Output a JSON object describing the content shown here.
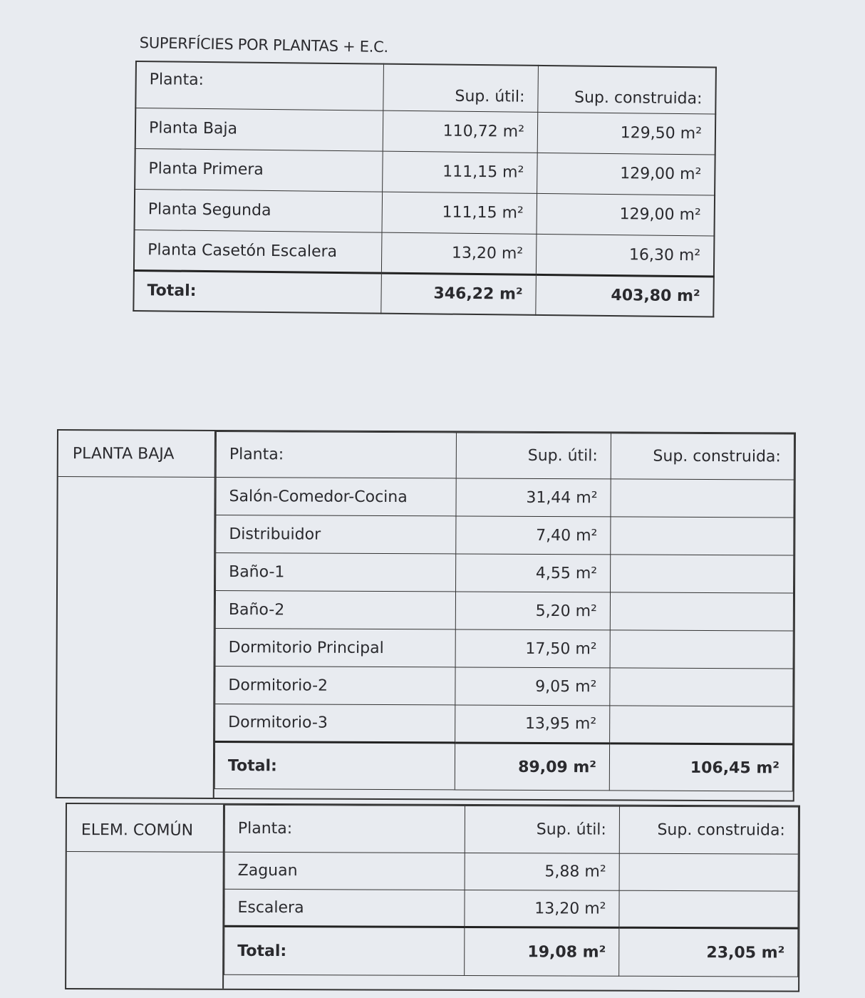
{
  "summary": {
    "title": "SUPERFÍCIES POR PLANTAS + E.C.",
    "headers": [
      "Planta:",
      "Sup. útil:",
      "Sup. construida:"
    ],
    "rows": [
      {
        "name": "Planta Baja",
        "util": "110,72 m²",
        "construida": "129,50 m²"
      },
      {
        "name": "Planta Primera",
        "util": "111,15 m²",
        "construida": "129,00 m²"
      },
      {
        "name": "Planta Segunda",
        "util": "111,15 m²",
        "construida": "129,00 m²"
      },
      {
        "name": "Planta Casetón Escalera",
        "util": "13,20 m²",
        "construida": "16,30 m²"
      }
    ],
    "total": {
      "name": "Total:",
      "util": "346,22 m²",
      "construida": "403,80 m²"
    }
  },
  "planta_baja": {
    "section": "PLANTA BAJA",
    "headers": [
      "Planta:",
      "Sup. útil:",
      "Sup. construida:"
    ],
    "rows": [
      {
        "name": "Salón-Comedor-Cocina",
        "util": "31,44 m²",
        "construida": ""
      },
      {
        "name": "Distribuidor",
        "util": "7,40 m²",
        "construida": ""
      },
      {
        "name": "Baño-1",
        "util": "4,55 m²",
        "construida": ""
      },
      {
        "name": "Baño-2",
        "util": "5,20 m²",
        "construida": ""
      },
      {
        "name": "Dormitorio Principal",
        "util": "17,50 m²",
        "construida": ""
      },
      {
        "name": "Dormitorio-2",
        "util": "9,05 m²",
        "construida": ""
      },
      {
        "name": "Dormitorio-3",
        "util": "13,95 m²",
        "construida": ""
      }
    ],
    "total": {
      "name": "Total:",
      "util": "89,09 m²",
      "construida": "106,45 m²"
    }
  },
  "elem_comun": {
    "section": "ELEM. COMÚN",
    "headers": [
      "Planta:",
      "Sup. útil:",
      "Sup. construida:"
    ],
    "rows": [
      {
        "name": "Zaguan",
        "util": "5,88 m²",
        "construida": ""
      },
      {
        "name": "Escalera",
        "util": "13,20 m²",
        "construida": ""
      }
    ],
    "total": {
      "name": "Total:",
      "util": "19,08 m²",
      "construida": "23,05 m²"
    }
  }
}
